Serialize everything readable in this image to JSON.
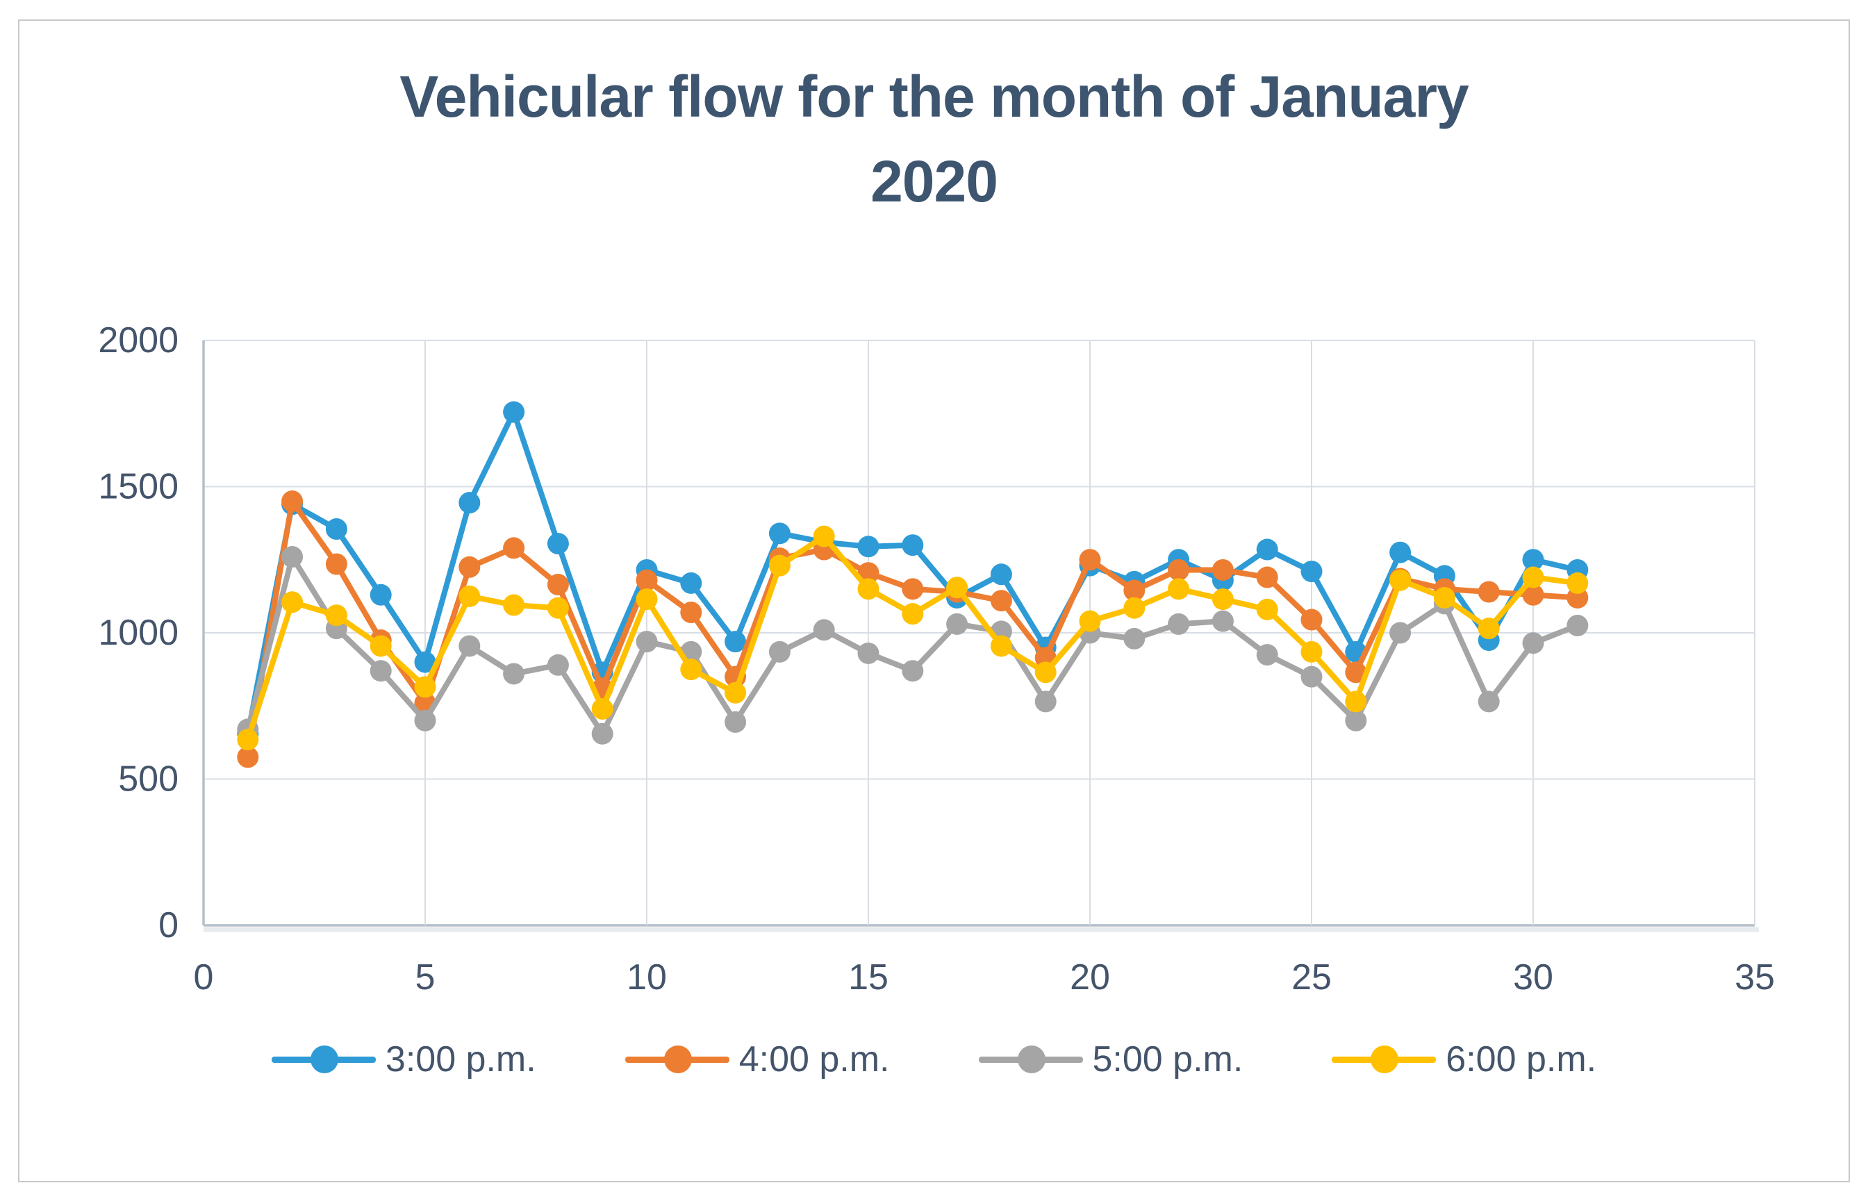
{
  "chart_data": {
    "type": "line",
    "title": "Vehicular flow for the month of January 2020",
    "title_lines": [
      "Vehicular flow for the month of January",
      "2020"
    ],
    "xlabel": "",
    "ylabel": "",
    "xlim": [
      0,
      35
    ],
    "ylim": [
      0,
      2000
    ],
    "x_ticks": [
      0,
      5,
      10,
      15,
      20,
      25,
      30,
      35
    ],
    "y_ticks": [
      0,
      500,
      1000,
      1500,
      2000
    ],
    "grid": true,
    "legend_position": "bottom",
    "x": [
      1,
      2,
      3,
      4,
      5,
      6,
      7,
      8,
      9,
      10,
      11,
      12,
      13,
      14,
      15,
      16,
      17,
      18,
      19,
      20,
      21,
      22,
      23,
      24,
      25,
      26,
      27,
      28,
      29,
      30,
      31
    ],
    "series": [
      {
        "name": "3:00 p.m.",
        "color": "#2e9bd6",
        "values": [
          655,
          1440,
          1355,
          1130,
          900,
          1445,
          1755,
          1305,
          865,
          1215,
          1170,
          970,
          1340,
          1310,
          1295,
          1300,
          1120,
          1200,
          950,
          1230,
          1175,
          1250,
          1180,
          1285,
          1210,
          935,
          1275,
          1195,
          975,
          1250,
          1215
        ]
      },
      {
        "name": "4:00 p.m.",
        "color": "#ed7d31",
        "values": [
          575,
          1450,
          1235,
          975,
          760,
          1225,
          1290,
          1165,
          810,
          1180,
          1070,
          850,
          1255,
          1285,
          1205,
          1150,
          1140,
          1110,
          915,
          1250,
          1145,
          1215,
          1215,
          1190,
          1045,
          865,
          1185,
          1150,
          1140,
          1130,
          1120
        ]
      },
      {
        "name": "5:00 p.m.",
        "color": "#a5a5a5",
        "values": [
          670,
          1260,
          1015,
          870,
          700,
          955,
          860,
          890,
          655,
          970,
          935,
          695,
          935,
          1010,
          930,
          870,
          1030,
          1005,
          765,
          1000,
          980,
          1030,
          1040,
          925,
          850,
          700,
          1000,
          1100,
          765,
          965,
          1025
        ]
      },
      {
        "name": "6:00 p.m.",
        "color": "#ffc000",
        "values": [
          635,
          1105,
          1060,
          955,
          815,
          1125,
          1095,
          1085,
          740,
          1115,
          875,
          795,
          1230,
          1330,
          1150,
          1065,
          1155,
          955,
          865,
          1040,
          1085,
          1150,
          1115,
          1080,
          935,
          765,
          1180,
          1120,
          1015,
          1190,
          1170
        ]
      }
    ],
    "colors": {
      "gridline": "#d9dee4",
      "axis_line": "#b6bfc9",
      "axis_shadow": "#e7eaee",
      "tick_text": "#44546a",
      "title_text": "#3e5570"
    }
  }
}
